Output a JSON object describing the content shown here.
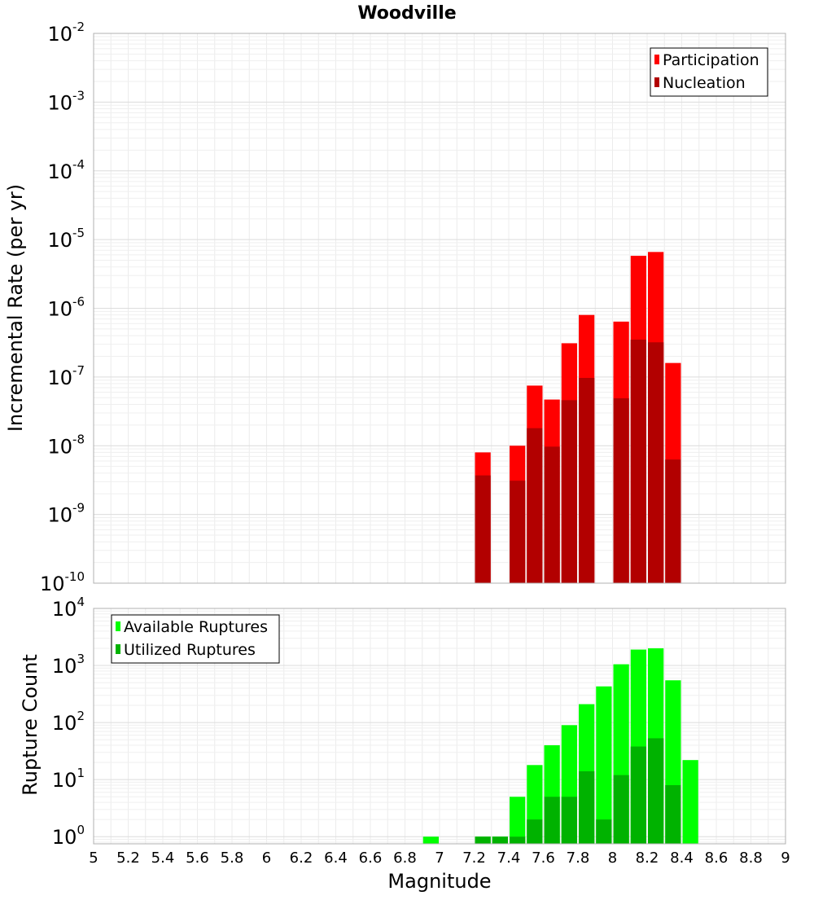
{
  "chart_data": [
    {
      "type": "bar",
      "title": "Woodville",
      "xlabel": "",
      "ylabel": "Incremental Rate (per yr)",
      "yscale": "log",
      "ylim": [
        1e-10,
        0.01
      ],
      "xlim": [
        5,
        9
      ],
      "grid": true,
      "legend_position": "top-right",
      "y_tick_labels": [
        {
          "base": "10",
          "exp": "-10"
        },
        {
          "base": "10",
          "exp": "-9"
        },
        {
          "base": "10",
          "exp": "-8"
        },
        {
          "base": "10",
          "exp": "-7"
        },
        {
          "base": "10",
          "exp": "-6"
        },
        {
          "base": "10",
          "exp": "-5"
        },
        {
          "base": "10",
          "exp": "-4"
        },
        {
          "base": "10",
          "exp": "-3"
        },
        {
          "base": "10",
          "exp": "-2"
        }
      ],
      "series": [
        {
          "name": "Participation",
          "color": "#ff0000",
          "x": [
            7.25,
            7.45,
            7.55,
            7.65,
            7.75,
            7.85,
            8.05,
            8.15,
            8.25,
            8.35
          ],
          "values": [
            8e-09,
            1e-08,
            7.5e-08,
            4.7e-08,
            3.1e-07,
            8e-07,
            6.4e-07,
            5.8e-06,
            6.6e-06,
            1.6e-07
          ]
        },
        {
          "name": "Nucleation",
          "color": "#b20000",
          "x": [
            7.25,
            7.45,
            7.55,
            7.65,
            7.75,
            7.85,
            8.05,
            8.15,
            8.25,
            8.35
          ],
          "values": [
            3.7e-09,
            3.1e-09,
            1.8e-08,
            9.7e-09,
            4.6e-08,
            9.7e-08,
            4.9e-08,
            3.5e-07,
            3.2e-07,
            6.3e-09
          ]
        }
      ]
    },
    {
      "type": "bar",
      "title": "",
      "xlabel": "Magnitude",
      "ylabel": "Rupture Count",
      "yscale": "log",
      "ylim": [
        0.75,
        10000
      ],
      "xlim": [
        5,
        9
      ],
      "grid": true,
      "legend_position": "top-left",
      "x_ticks": [
        "5",
        "5.2",
        "5.4",
        "5.6",
        "5.8",
        "6",
        "6.2",
        "6.4",
        "6.6",
        "6.8",
        "7",
        "7.2",
        "7.4",
        "7.6",
        "7.8",
        "8",
        "8.2",
        "8.4",
        "8.6",
        "8.8",
        "9"
      ],
      "y_tick_labels": [
        {
          "base": "10",
          "exp": "0"
        },
        {
          "base": "10",
          "exp": "1"
        },
        {
          "base": "10",
          "exp": "2"
        },
        {
          "base": "10",
          "exp": "3"
        },
        {
          "base": "10",
          "exp": "4"
        }
      ],
      "series": [
        {
          "name": "Available Ruptures",
          "color": "#00ff00",
          "x": [
            6.95,
            7.25,
            7.35,
            7.45,
            7.55,
            7.65,
            7.75,
            7.85,
            7.95,
            8.05,
            8.15,
            8.25,
            8.35,
            8.45
          ],
          "values": [
            1,
            1,
            1,
            5,
            18,
            40,
            90,
            210,
            430,
            1050,
            1900,
            2000,
            550,
            22
          ]
        },
        {
          "name": "Utilized Ruptures",
          "color": "#00b200",
          "x": [
            7.25,
            7.35,
            7.45,
            7.55,
            7.65,
            7.75,
            7.85,
            7.95,
            8.05,
            8.15,
            8.25,
            8.35
          ],
          "values": [
            1,
            1,
            1,
            2,
            5,
            5,
            14,
            2,
            12,
            38,
            53,
            8
          ]
        }
      ]
    }
  ]
}
